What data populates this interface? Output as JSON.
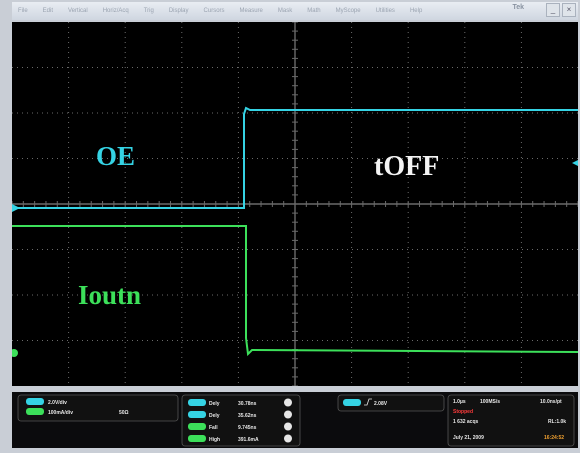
{
  "menubar": {
    "items": [
      "File",
      "Edit",
      "Vertical",
      "Horiz/Acq",
      "Trig",
      "Display",
      "Cursors",
      "Measure",
      "Mask",
      "Math",
      "MyScope",
      "Utilities",
      "Help"
    ],
    "logo": "Tek"
  },
  "screen": {
    "labels": {
      "oe": "OE",
      "toff": "tOFF",
      "ioutn": "Ioutn"
    },
    "colors": {
      "ch1": "#35d3e4",
      "ch2": "#3ce05a",
      "grid": "#6a6a6a",
      "bg": "#000000"
    }
  },
  "readout": {
    "ch1_scale": "2.0V/div",
    "ch2_scale": "100mA/div",
    "ch2_impedance": "50Ω",
    "measurements": [
      {
        "label": "Dely",
        "value": "30.78ns"
      },
      {
        "label": "Dely",
        "value": "35.62ns"
      },
      {
        "label": "Fall",
        "value": "9.745ns"
      },
      {
        "label": "High",
        "value": "391.6mA"
      }
    ],
    "trigger_level": "2.08V",
    "timebase": "1.0µs",
    "sample_rate": "100MS/s",
    "resolution": "10.0ns/pt",
    "status": "Stopped",
    "acqs": "1 632 acqs",
    "record_length": "RL:1.0k",
    "date": "July 21, 2009",
    "time": "16:24:52"
  }
}
